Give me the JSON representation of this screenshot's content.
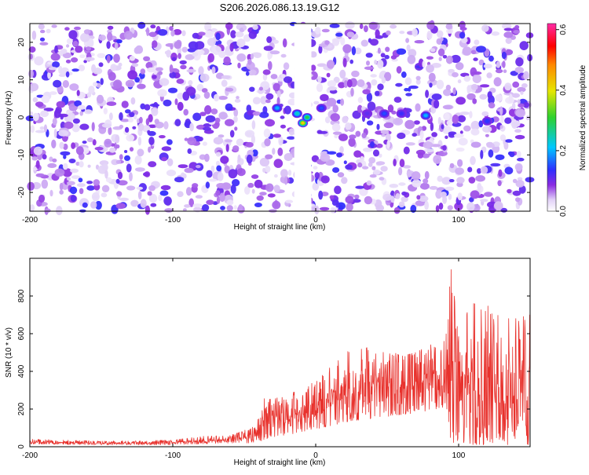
{
  "chart_data": [
    {
      "type": "heatmap",
      "title": "S206.2026.086.13.19.G12",
      "xlabel": "Height of straight line (km)",
      "ylabel": "Frequency (Hz)",
      "xlim": [
        -200,
        150
      ],
      "ylim": [
        -25,
        25
      ],
      "xticks": [
        -200,
        -100,
        0,
        100
      ],
      "xtick_labels": [
        "-200",
        "-100",
        "0",
        "100"
      ],
      "yticks": [
        -20,
        -10,
        0,
        10,
        20
      ],
      "ytick_labels": [
        "-20",
        "-10",
        "0",
        "10",
        "20"
      ],
      "gap_x_range": [
        -15,
        -3
      ],
      "colorbar": {
        "label": "Normalized spectral amplitude",
        "range": [
          0.0,
          0.62
        ],
        "ticks": [
          0.0,
          0.2,
          0.4,
          0.6
        ],
        "tick_labels": [
          "0.0",
          "0.2",
          "0.4",
          "0.6"
        ]
      },
      "hotspots": [
        {
          "x": -9,
          "y": -1.5,
          "amp": 0.42
        },
        {
          "x": -6,
          "y": 0,
          "amp": 0.3
        },
        {
          "x": -13,
          "y": 1,
          "amp": 0.24
        },
        {
          "x": -27,
          "y": 2.5,
          "amp": 0.2
        },
        {
          "x": 4,
          "y": 2.5,
          "amp": 0.15
        },
        {
          "x": 77,
          "y": 0.5,
          "amp": 0.2
        },
        {
          "x": 48,
          "y": 1,
          "amp": 0.15
        },
        {
          "x": 60,
          "y": 1,
          "amp": 0.13
        },
        {
          "x": 120,
          "y": -1,
          "amp": 0.14
        },
        {
          "x": 36,
          "y": 1,
          "amp": 0.11
        }
      ]
    },
    {
      "type": "line",
      "xlabel": "Height of straight line (km)",
      "ylabel": "SNR (10 * v/v)",
      "xlim": [
        -200,
        150
      ],
      "ylim": [
        0,
        1000
      ],
      "xticks": [
        -200,
        -100,
        0,
        100
      ],
      "xtick_labels": [
        "-200",
        "-100",
        "0",
        "100"
      ],
      "yticks": [
        0,
        200,
        400,
        600,
        800
      ],
      "ytick_labels": [
        "0",
        "200",
        "400",
        "600",
        "800"
      ],
      "series": [
        {
          "name": "SNR",
          "color": "#e8322d",
          "envelope_x": [
            -200,
            -150,
            -100,
            -80,
            -60,
            -45,
            -40,
            -35,
            -30,
            -20,
            -10,
            0,
            10,
            20,
            30,
            40,
            50,
            60,
            70,
            80,
            90,
            95,
            100,
            110,
            120,
            130,
            140,
            150
          ],
          "envelope_max": [
            40,
            30,
            35,
            55,
            60,
            100,
            150,
            330,
            250,
            280,
            300,
            350,
            420,
            500,
            520,
            530,
            520,
            480,
            500,
            540,
            560,
            960,
            640,
            760,
            750,
            680,
            680,
            700
          ],
          "envelope_min": [
            15,
            10,
            10,
            15,
            20,
            20,
            25,
            40,
            50,
            60,
            80,
            90,
            110,
            130,
            140,
            150,
            160,
            170,
            180,
            190,
            200,
            20,
            10,
            10,
            10,
            10,
            10,
            10
          ]
        }
      ]
    }
  ]
}
